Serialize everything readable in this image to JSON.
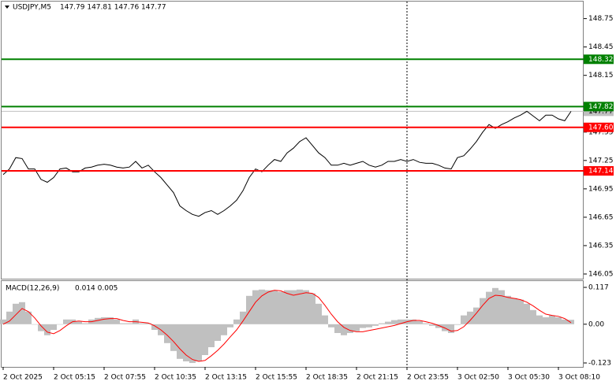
{
  "chart_data": [
    {
      "type": "line",
      "title": "USDJPY,M5",
      "subtitle": "147.79 147.81 147.76 147.77",
      "series": [
        {
          "color": "#000000",
          "values": [
            147.1,
            147.16,
            147.28,
            147.27,
            147.16,
            147.16,
            147.05,
            147.02,
            147.07,
            147.16,
            147.17,
            147.13,
            147.13,
            147.17,
            147.18,
            147.2,
            147.21,
            147.2,
            147.18,
            147.17,
            147.18,
            147.24,
            147.17,
            147.2,
            147.13,
            147.07,
            146.99,
            146.91,
            146.77,
            146.72,
            146.68,
            146.66,
            146.7,
            146.72,
            146.68,
            146.72,
            146.77,
            146.83,
            146.93,
            147.07,
            147.16,
            147.13,
            147.2,
            147.26,
            147.24,
            147.33,
            147.38,
            147.45,
            147.49,
            147.41,
            147.33,
            147.28,
            147.2,
            147.2,
            147.22,
            147.2,
            147.22,
            147.24,
            147.2,
            147.18,
            147.2,
            147.24,
            147.24,
            147.26,
            147.24,
            147.26,
            147.23,
            147.22,
            147.22,
            147.2,
            147.17,
            147.16,
            147.28,
            147.3,
            147.37,
            147.45,
            147.55,
            147.63,
            147.59,
            147.63,
            147.66,
            147.7,
            147.73,
            147.77,
            147.72,
            147.67,
            147.73,
            147.73,
            147.69,
            147.67,
            147.77
          ]
        }
      ],
      "xlim": [
        -0.25,
        92
      ],
      "xticks": [
        {
          "value": 0,
          "label": "2 Oct 2025"
        },
        {
          "value": 8,
          "label": "2 Oct 05:15"
        },
        {
          "value": 16,
          "label": "2 Oct 07:55"
        },
        {
          "value": 24,
          "label": "2 Oct 10:35"
        },
        {
          "value": 32,
          "label": "2 Oct 13:15"
        },
        {
          "value": 40,
          "label": "2 Oct 15:55"
        },
        {
          "value": 48,
          "label": "2 Oct 18:35"
        },
        {
          "value": 56,
          "label": "2 Oct 21:15"
        },
        {
          "value": 64,
          "label": "2 Oct 23:55"
        },
        {
          "value": 72,
          "label": "3 Oct 02:50"
        },
        {
          "value": 80,
          "label": "3 Oct 05:30"
        },
        {
          "value": 88,
          "label": "3 Oct 08:10"
        }
      ],
      "ylim": [
        146.0,
        148.93
      ],
      "yticks": [
        148.75,
        148.45,
        148.15,
        147.55,
        147.25,
        146.95,
        146.65,
        146.35,
        146.05
      ],
      "levels": [
        {
          "value": 148.32,
          "color": "#008000"
        },
        {
          "value": 147.82,
          "color": "#008000"
        },
        {
          "value": 147.6,
          "label": "147.60",
          "color": "#ff0000"
        },
        {
          "value": 147.14,
          "color": "#ff0000"
        }
      ],
      "current_price_color": "#c0c0c0"
    },
    {
      "type": "macd",
      "title": "MACD(12,26,9)",
      "subtitle": "0.014 0.005",
      "series": [
        {
          "type": "bar",
          "color": "#c0c0c0",
          "values": [
            0.015,
            0.04,
            0.065,
            0.07,
            0.04,
            0,
            -0.022,
            -0.035,
            -0.018,
            0,
            0.015,
            0.015,
            0.008,
            0.003,
            0.015,
            0.02,
            0.022,
            0.022,
            0.015,
            0.003,
            0.003,
            0.015,
            0.003,
            0.003,
            -0.018,
            -0.035,
            -0.06,
            -0.085,
            -0.11,
            -0.118,
            -0.123,
            -0.118,
            -0.098,
            -0.073,
            -0.053,
            -0.035,
            -0.01,
            0.015,
            0.04,
            0.09,
            0.108,
            0.11,
            0.108,
            0.108,
            0.103,
            0.108,
            0.108,
            0.11,
            0.108,
            0.098,
            0.065,
            0.028,
            -0.01,
            -0.028,
            -0.035,
            -0.028,
            -0.022,
            -0.012,
            -0.01,
            -0.005,
            0.003,
            0.008,
            0.013,
            0.015,
            0.015,
            0.015,
            0.01,
            0.003,
            -0.005,
            -0.012,
            -0.022,
            -0.028,
            -0.002,
            0.028,
            0.04,
            0.053,
            0.083,
            0.103,
            0.115,
            0.108,
            0.09,
            0.083,
            0.078,
            0.065,
            0.045,
            0.028,
            0.022,
            0.028,
            0.022,
            0.015,
            0.014
          ]
        },
        {
          "type": "line",
          "color": "#ff0000",
          "values": [
            0,
            0.01,
            0.03,
            0.05,
            0.04,
            0.02,
            -0.005,
            -0.025,
            -0.03,
            -0.02,
            -0.005,
            0.008,
            0.01,
            0.008,
            0.008,
            0.012,
            0.016,
            0.018,
            0.018,
            0.012,
            0.008,
            0.008,
            0.006,
            0.004,
            -0.005,
            -0.018,
            -0.035,
            -0.055,
            -0.078,
            -0.098,
            -0.112,
            -0.118,
            -0.115,
            -0.1,
            -0.083,
            -0.063,
            -0.04,
            -0.018,
            0.01,
            0.04,
            0.07,
            0.09,
            0.102,
            0.108,
            0.106,
            0.098,
            0.092,
            0.096,
            0.1,
            0.098,
            0.085,
            0.06,
            0.032,
            0.008,
            -0.01,
            -0.02,
            -0.024,
            -0.024,
            -0.02,
            -0.016,
            -0.012,
            -0.008,
            -0.004,
            0.002,
            0.008,
            0.012,
            0.012,
            0.008,
            0.003,
            -0.004,
            -0.012,
            -0.022,
            -0.02,
            -0.008,
            0.012,
            0.035,
            0.06,
            0.082,
            0.092,
            0.09,
            0.085,
            0.082,
            0.078,
            0.07,
            0.058,
            0.044,
            0.032,
            0.028,
            0.025,
            0.018,
            0.005
          ]
        }
      ],
      "xlim": [
        -0.25,
        92
      ],
      "ylim": [
        -0.1355,
        0.137
      ],
      "yticks": [
        0.117,
        {
          "value": 0,
          "label": "0.00"
        },
        -0.123
      ]
    }
  ]
}
